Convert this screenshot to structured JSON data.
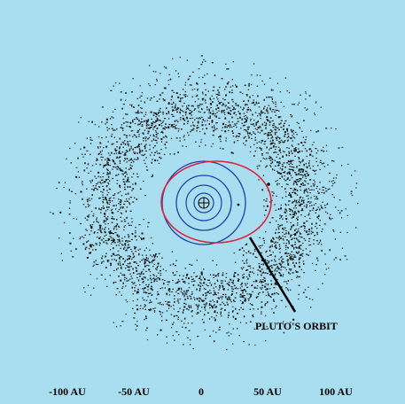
{
  "colors": {
    "background": "#a9def0",
    "belt_dots": "#111111",
    "planet_orbits": "#1f3fae",
    "pluto_orbit": "#e0223a",
    "label": "#000000"
  },
  "diagram": {
    "pluto_callout": "PLUTO'S ORBIT",
    "scale_labels": [
      "-100 AU",
      "-50 AU",
      "0",
      "50 AU",
      "100 AU"
    ],
    "sun_symbol": "+"
  }
}
